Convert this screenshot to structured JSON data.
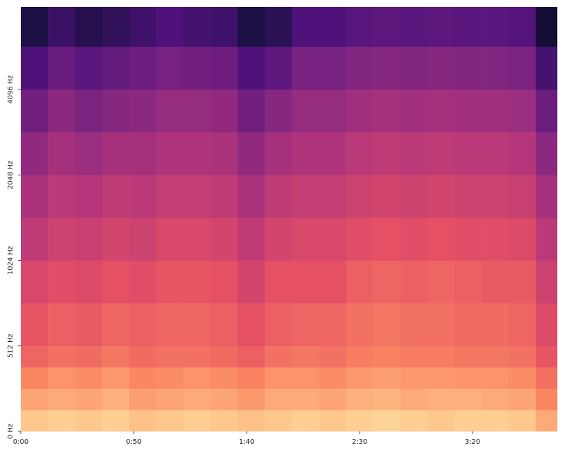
{
  "chart_data": {
    "type": "spectrogram",
    "colormap": "magma",
    "zlim": [
      -80,
      0
    ],
    "xlim": [
      0,
      237.4
    ],
    "ylim": [
      0,
      8000
    ],
    "yscale": "symlog",
    "linthresh": 512,
    "base": 2,
    "xticks": [
      {
        "value": 0,
        "label": "0:00"
      },
      {
        "value": 50,
        "label": "0:50"
      },
      {
        "value": 100,
        "label": "1:40"
      },
      {
        "value": 150,
        "label": "2:30"
      },
      {
        "value": 200,
        "label": "3:20"
      }
    ],
    "yticks": [
      {
        "value": 0,
        "label": "0 Hz"
      },
      {
        "value": 512,
        "label": "512 Hz"
      },
      {
        "value": 1024,
        "label": "1024 Hz"
      },
      {
        "value": 2048,
        "label": "2048 Hz"
      },
      {
        "value": 4096,
        "label": "4096 Hz"
      }
    ],
    "x": [
      0,
      12,
      24,
      36,
      48,
      60,
      72,
      84,
      96,
      108,
      120,
      132,
      144,
      156,
      168,
      180,
      192,
      204,
      216,
      228,
      237.4
    ],
    "y": [
      0,
      128,
      256,
      384,
      512,
      724,
      1024,
      1448,
      2048,
      2896,
      4096,
      5793,
      8000
    ],
    "values": [
      [
        -9,
        -8,
        -9,
        -8,
        -10,
        -9,
        -8,
        -9,
        -10,
        -9,
        -8,
        -9,
        -8,
        -7,
        -8,
        -9,
        -8,
        -8,
        -9,
        -14
      ],
      [
        -15,
        -14,
        -15,
        -13,
        -16,
        -15,
        -14,
        -15,
        -17,
        -14,
        -14,
        -15,
        -13,
        -12,
        -14,
        -13,
        -13,
        -14,
        -15,
        -20
      ],
      [
        -20,
        -18,
        -19,
        -17,
        -20,
        -19,
        -18,
        -19,
        -21,
        -18,
        -18,
        -19,
        -17,
        -16,
        -17,
        -17,
        -18,
        -18,
        -19,
        -24
      ],
      [
        -26,
        -24,
        -25,
        -23,
        -25,
        -24,
        -24,
        -25,
        -27,
        -24,
        -23,
        -24,
        -22,
        -21,
        -22,
        -22,
        -23,
        -23,
        -24,
        -29
      ],
      [
        -29,
        -27,
        -28,
        -26,
        -27,
        -26,
        -26,
        -27,
        -30,
        -27,
        -26,
        -26,
        -24,
        -23,
        -24,
        -24,
        -25,
        -25,
        -26,
        -32
      ],
      [
        -33,
        -31,
        -32,
        -30,
        -31,
        -29,
        -29,
        -30,
        -34,
        -30,
        -30,
        -30,
        -27,
        -26,
        -27,
        -26,
        -27,
        -28,
        -28,
        -35
      ],
      [
        -38,
        -35,
        -36,
        -34,
        -35,
        -33,
        -33,
        -34,
        -38,
        -34,
        -33,
        -33,
        -31,
        -30,
        -31,
        -30,
        -31,
        -31,
        -32,
        -39
      ],
      [
        -42,
        -39,
        -40,
        -38,
        -39,
        -37,
        -37,
        -38,
        -42,
        -38,
        -37,
        -37,
        -35,
        -34,
        -35,
        -34,
        -35,
        -35,
        -36,
        -43
      ],
      [
        -47,
        -43,
        -45,
        -43,
        -43,
        -41,
        -41,
        -42,
        -47,
        -43,
        -41,
        -41,
        -39,
        -38,
        -39,
        -38,
        -39,
        -39,
        -40,
        -48
      ],
      [
        -53,
        -48,
        -51,
        -49,
        -48,
        -46,
        -46,
        -47,
        -53,
        -49,
        -46,
        -46,
        -44,
        -43,
        -44,
        -43,
        -44,
        -44,
        -45,
        -54
      ],
      [
        -60,
        -55,
        -58,
        -56,
        -54,
        -52,
        -53,
        -54,
        -60,
        -57,
        -52,
        -52,
        -50,
        -49,
        -50,
        -49,
        -50,
        -50,
        -51,
        -62
      ],
      [
        -70,
        -64,
        -68,
        -66,
        -63,
        -60,
        -62,
        -63,
        -70,
        -67,
        -60,
        -60,
        -58,
        -57,
        -58,
        -57,
        -58,
        -58,
        -59,
        -72
      ]
    ]
  }
}
